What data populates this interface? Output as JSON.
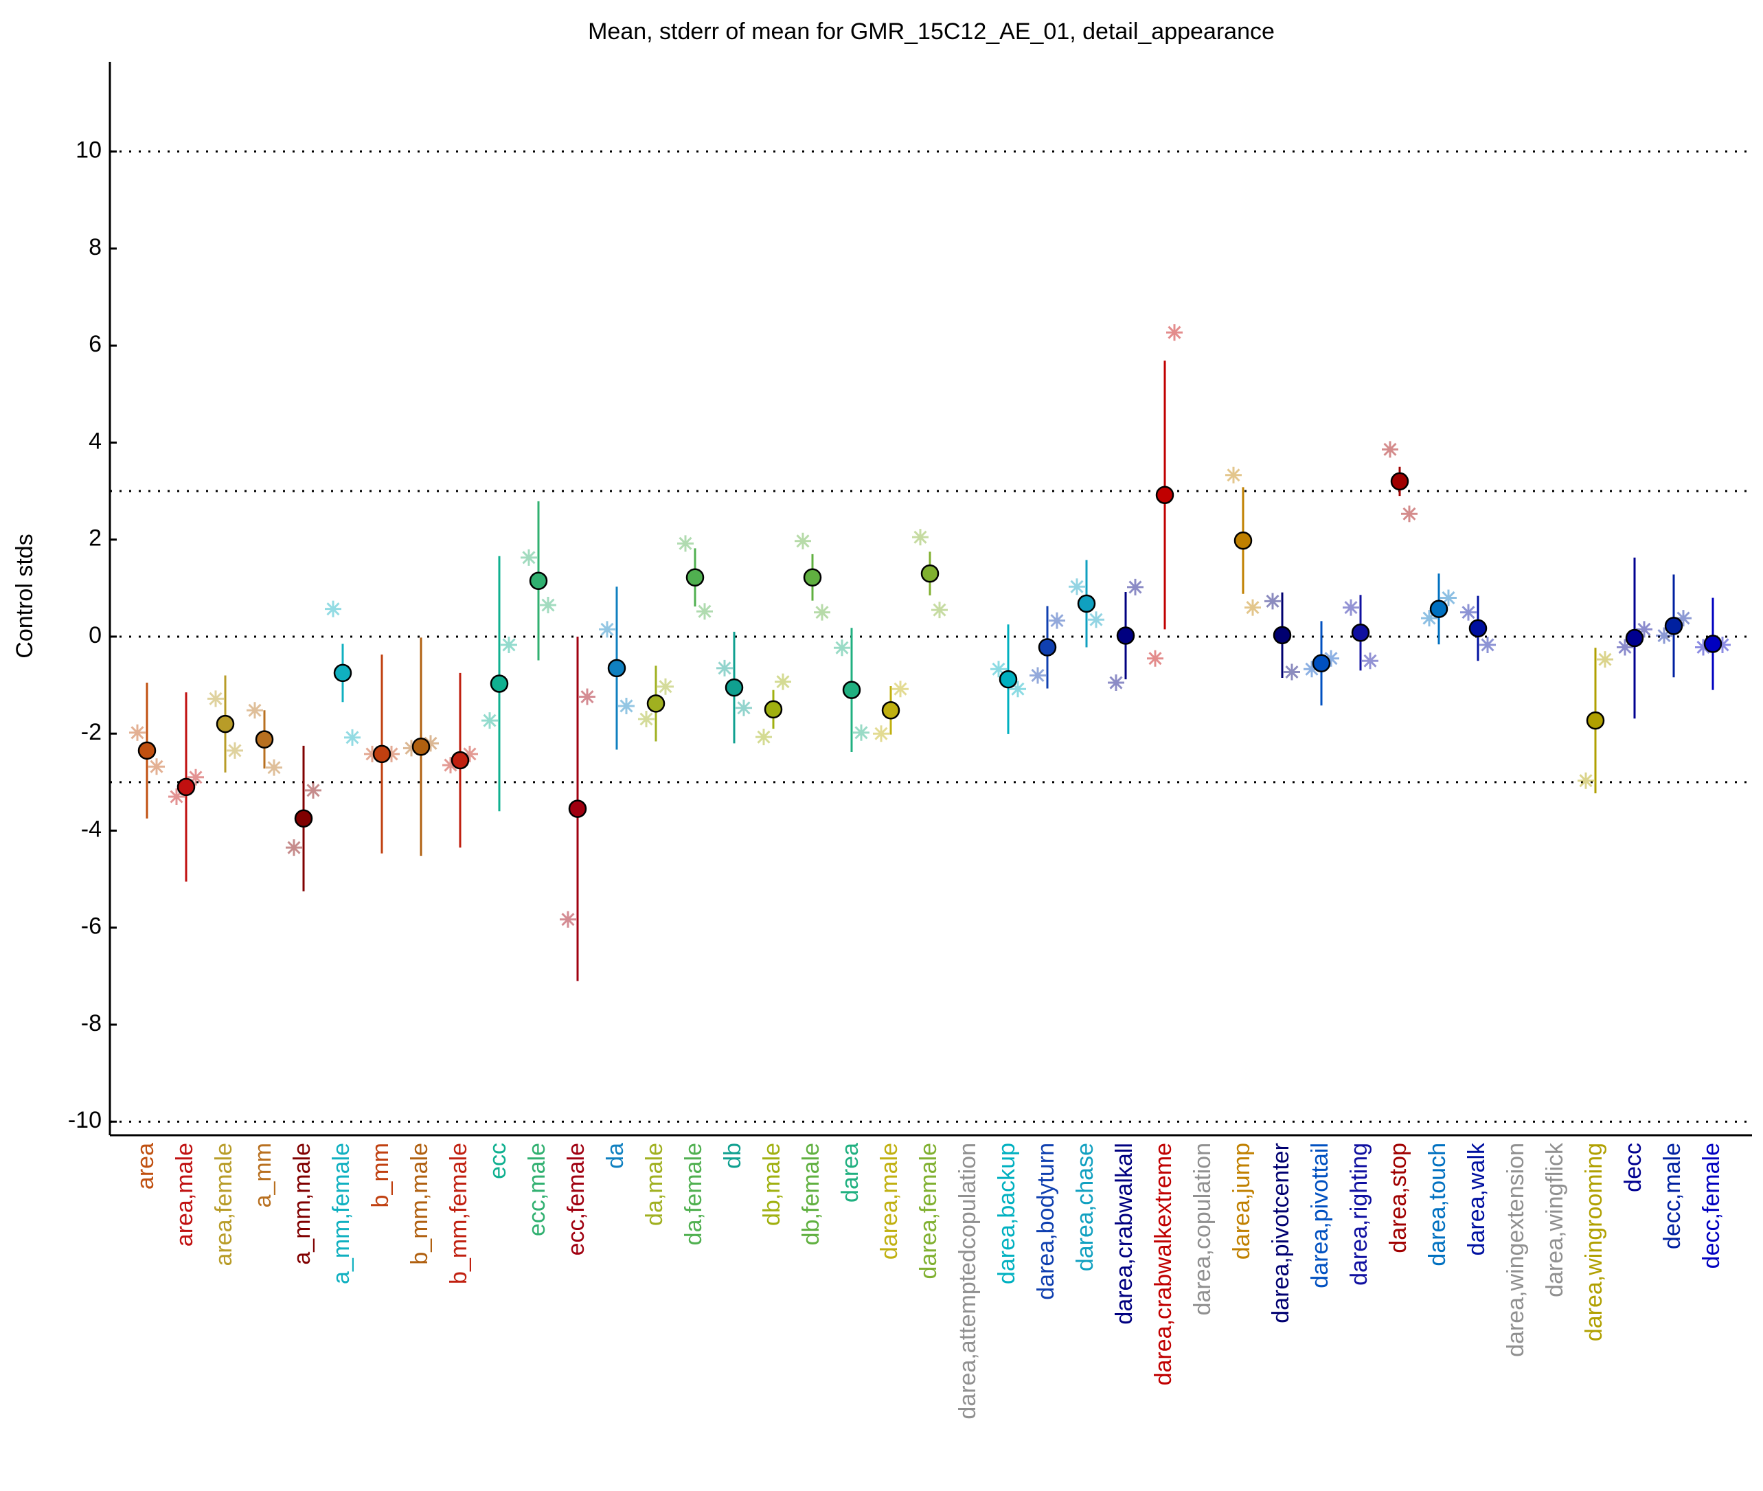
{
  "chart_data": {
    "type": "errorbar",
    "title": "Mean, stderr of mean for GMR_15C12_AE_01, detail_appearance",
    "ylabel": "Control stds",
    "categories": [
      "area",
      "area,male",
      "area,female",
      "a_mm",
      "a_mm,male",
      "a_mm,female",
      "b_mm",
      "b_mm,male",
      "b_mm,female",
      "ecc",
      "ecc,male",
      "ecc,female",
      "da",
      "da,male",
      "da,female",
      "db",
      "db,male",
      "db,female",
      "darea",
      "darea,male",
      "darea,female",
      "darea,attemptedcopulation",
      "darea,backup",
      "darea,bodyturn",
      "darea,chase",
      "darea,crabwalkall",
      "darea,crabwalkextreme",
      "darea,copulation",
      "darea,jump",
      "darea,pivotcenter",
      "darea,pivottail",
      "darea,righting",
      "darea,stop",
      "darea,touch",
      "darea,walk",
      "darea,wingextension",
      "darea,wingflick",
      "darea,wingrooming",
      "decc",
      "decc,male",
      "decc,female"
    ],
    "values": [
      -2.35,
      -3.1,
      -1.8,
      -2.12,
      -3.75,
      -0.75,
      -2.42,
      -2.27,
      -2.55,
      -0.97,
      1.15,
      -3.55,
      -0.65,
      -1.38,
      1.22,
      -1.05,
      -1.5,
      1.22,
      -1.1,
      -1.52,
      1.3,
      null,
      -0.88,
      -0.22,
      0.68,
      0.02,
      2.92,
      null,
      1.98,
      0.03,
      -0.55,
      0.08,
      3.2,
      0.57,
      0.17,
      null,
      null,
      -1.73,
      -0.03,
      0.22,
      -0.15
    ],
    "errors": [
      1.4,
      1.95,
      1.0,
      0.6,
      1.5,
      0.6,
      2.05,
      2.25,
      1.8,
      2.63,
      1.64,
      3.55,
      1.68,
      0.78,
      0.6,
      1.15,
      0.4,
      0.48,
      1.28,
      0.5,
      0.45,
      null,
      1.13,
      0.85,
      0.9,
      0.9,
      2.77,
      null,
      1.1,
      0.88,
      0.87,
      0.78,
      0.3,
      0.73,
      0.67,
      null,
      null,
      1.5,
      1.66,
      1.06,
      0.95
    ],
    "star_left": [
      -1.98,
      -3.3,
      -1.28,
      -1.52,
      -4.35,
      0.57,
      -2.42,
      -2.3,
      -2.65,
      -1.73,
      1.63,
      -5.83,
      0.15,
      -1.7,
      1.92,
      -0.65,
      -2.07,
      1.97,
      -0.23,
      -2.0,
      2.05,
      null,
      -0.67,
      -0.8,
      1.03,
      -0.95,
      -0.45,
      null,
      3.33,
      0.73,
      -0.67,
      0.6,
      3.86,
      0.38,
      0.5,
      null,
      null,
      -2.97,
      -0.22,
      0.02,
      -0.22
    ],
    "star_right": [
      -2.68,
      -2.9,
      -2.35,
      -2.7,
      -3.17,
      -2.08,
      -2.42,
      -2.2,
      -2.42,
      -0.17,
      0.65,
      -1.24,
      -1.43,
      -1.03,
      0.52,
      -1.47,
      -0.93,
      0.5,
      -1.98,
      -1.08,
      0.55,
      null,
      -1.08,
      0.33,
      0.35,
      1.02,
      6.27,
      null,
      0.6,
      -0.73,
      -0.45,
      -0.5,
      2.53,
      0.8,
      -0.17,
      null,
      null,
      -0.47,
      0.15,
      0.38,
      -0.17
    ],
    "colors": [
      "#c05010",
      "#c01010",
      "#b89c28",
      "#b87020",
      "#800000",
      "#10b0c0",
      "#c04010",
      "#b06010",
      "#c02010",
      "#10b090",
      "#30b070",
      "#a00010",
      "#1080c0",
      "#a0b020",
      "#50b050",
      "#10a090",
      "#a0b010",
      "#60b040",
      "#20b080",
      "#c0b010",
      "#80b030",
      "#909090",
      "#00b0c0",
      "#1040b0",
      "#10a0c0",
      "#000080",
      "#c00000",
      "#909090",
      "#c08000",
      "#000070",
      "#0050c0",
      "#1010a0",
      "#a00000",
      "#0070c0",
      "#0010a0",
      "#909090",
      "#909090",
      "#b0a000",
      "#000090",
      "#0020a0",
      "#0000c0"
    ],
    "ylim": [
      -10.28,
      11.85
    ],
    "yticks": [
      -10,
      -8,
      -6,
      -4,
      -2,
      0,
      2,
      4,
      6,
      8,
      10
    ],
    "reference_lines": [
      -10,
      -3,
      0,
      3,
      10
    ]
  }
}
